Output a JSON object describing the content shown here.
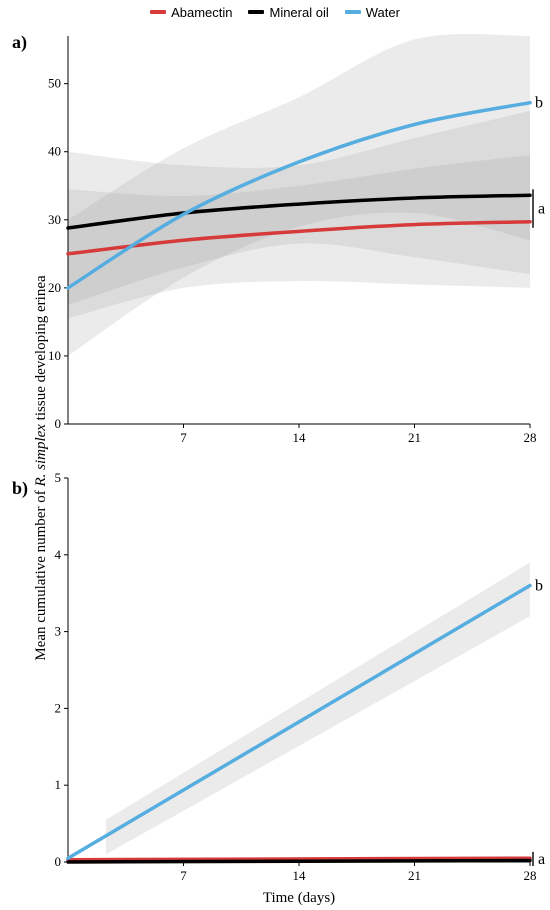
{
  "legend": [
    {
      "name": "Abamectin",
      "color": "#d63a3a"
    },
    {
      "name": "Mineral oil",
      "color": "#000000"
    },
    {
      "name": "Water",
      "color": "#56addf"
    }
  ],
  "ylabel_pre": "Mean cumulative number of ",
  "ylabel_italic": "R. simplex",
  "ylabel_post": " tissue developing erinea",
  "chart_data": [
    {
      "type": "line",
      "panel_label": "a)",
      "xlabel": "",
      "xlim": [
        0,
        28
      ],
      "ylim": [
        0,
        57
      ],
      "xticks": [
        7,
        14,
        21,
        28
      ],
      "yticks": [
        0,
        10,
        20,
        30,
        40,
        50
      ],
      "series": [
        {
          "name": "Abamectin",
          "color": "#d63a3a",
          "x": [
            0,
            7,
            14,
            21,
            28
          ],
          "y": [
            25.0,
            27.0,
            28.3,
            29.3,
            29.7
          ],
          "ci_lower": [
            15.5,
            20.0,
            21.0,
            20.5,
            20.0
          ],
          "ci_upper": [
            34.5,
            33.5,
            35.0,
            37.5,
            39.5
          ]
        },
        {
          "name": "Mineral oil",
          "color": "#000000",
          "x": [
            0,
            7,
            14,
            21,
            28
          ],
          "y": [
            28.8,
            31.0,
            32.3,
            33.2,
            33.6
          ],
          "ci_lower": [
            17.5,
            23.0,
            26.5,
            24.5,
            22.0
          ],
          "ci_upper": [
            40.0,
            38.0,
            38.0,
            42.0,
            46.0
          ]
        },
        {
          "name": "Water",
          "color": "#56addf",
          "x": [
            0,
            7,
            14,
            21,
            28
          ],
          "y": [
            20.0,
            30.8,
            38.5,
            44.0,
            47.2
          ],
          "ci_lower": [
            10.0,
            21.5,
            29.0,
            31.0,
            27.0
          ],
          "ci_upper": [
            30.0,
            40.5,
            48.0,
            56.5,
            57.0
          ]
        }
      ],
      "significance": [
        {
          "label": "b",
          "value": 47.2
        },
        {
          "label": "a",
          "range": [
            29.7,
            33.6
          ]
        }
      ]
    },
    {
      "type": "line",
      "panel_label": "b)",
      "xlabel": "Time (days)",
      "xlim": [
        0,
        28
      ],
      "ylim": [
        0,
        5
      ],
      "xticks": [
        7,
        14,
        21,
        28
      ],
      "yticks": [
        0,
        1,
        2,
        3,
        4,
        5
      ],
      "series": [
        {
          "name": "Abamectin",
          "color": "#d63a3a",
          "x": [
            0,
            28
          ],
          "y": [
            0.03,
            0.05
          ]
        },
        {
          "name": "Mineral oil",
          "color": "#000000",
          "x": [
            0,
            28
          ],
          "y": [
            0.0,
            0.02
          ]
        },
        {
          "name": "Water",
          "color": "#56addf",
          "x": [
            0,
            28
          ],
          "y": [
            0.05,
            3.6
          ],
          "ci_x": [
            2.3,
            28
          ],
          "ci_lower": [
            0.1,
            3.2
          ],
          "ci_upper": [
            0.55,
            3.9
          ]
        }
      ],
      "significance": [
        {
          "label": "b",
          "value": 3.6
        },
        {
          "label": "a",
          "range": [
            0.0,
            0.08
          ]
        }
      ]
    }
  ]
}
